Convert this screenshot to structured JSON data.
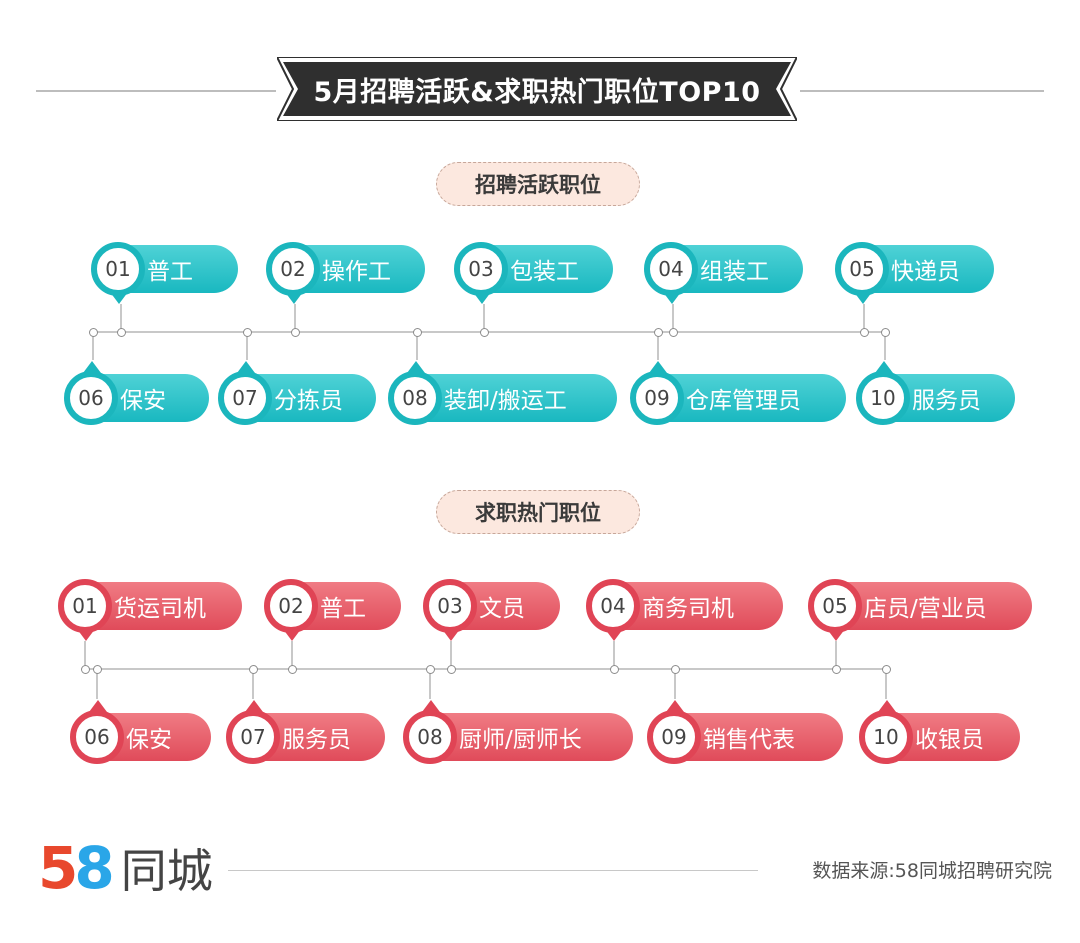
{
  "title": "5月招聘活跃&求职热门职位TOP10",
  "sections": [
    {
      "heading": "招聘活跃职位",
      "color": "teal",
      "items": [
        {
          "rank": "01",
          "name": "普工"
        },
        {
          "rank": "02",
          "name": "操作工"
        },
        {
          "rank": "03",
          "name": "包装工"
        },
        {
          "rank": "04",
          "name": "组装工"
        },
        {
          "rank": "05",
          "name": "快递员"
        },
        {
          "rank": "06",
          "name": "保安"
        },
        {
          "rank": "07",
          "name": "分拣员"
        },
        {
          "rank": "08",
          "name": "装卸/搬运工"
        },
        {
          "rank": "09",
          "name": "仓库管理员"
        },
        {
          "rank": "10",
          "name": "服务员"
        }
      ]
    },
    {
      "heading": "求职热门职位",
      "color": "red",
      "items": [
        {
          "rank": "01",
          "name": "货运司机"
        },
        {
          "rank": "02",
          "name": "普工"
        },
        {
          "rank": "03",
          "name": "文员"
        },
        {
          "rank": "04",
          "name": "商务司机"
        },
        {
          "rank": "05",
          "name": "店员/营业员"
        },
        {
          "rank": "06",
          "name": "保安"
        },
        {
          "rank": "07",
          "name": "服务员"
        },
        {
          "rank": "08",
          "name": "厨师/厨师长"
        },
        {
          "rank": "09",
          "name": "销售代表"
        },
        {
          "rank": "10",
          "name": "收银员"
        }
      ]
    }
  ],
  "logo": {
    "digit1": "5",
    "digit2": "8",
    "text": "同城"
  },
  "source": "数据来源:58同城招聘研究院",
  "colors": {
    "teal": "#1bb6bd",
    "red": "#e04455",
    "banner": "#2f2f2f"
  }
}
